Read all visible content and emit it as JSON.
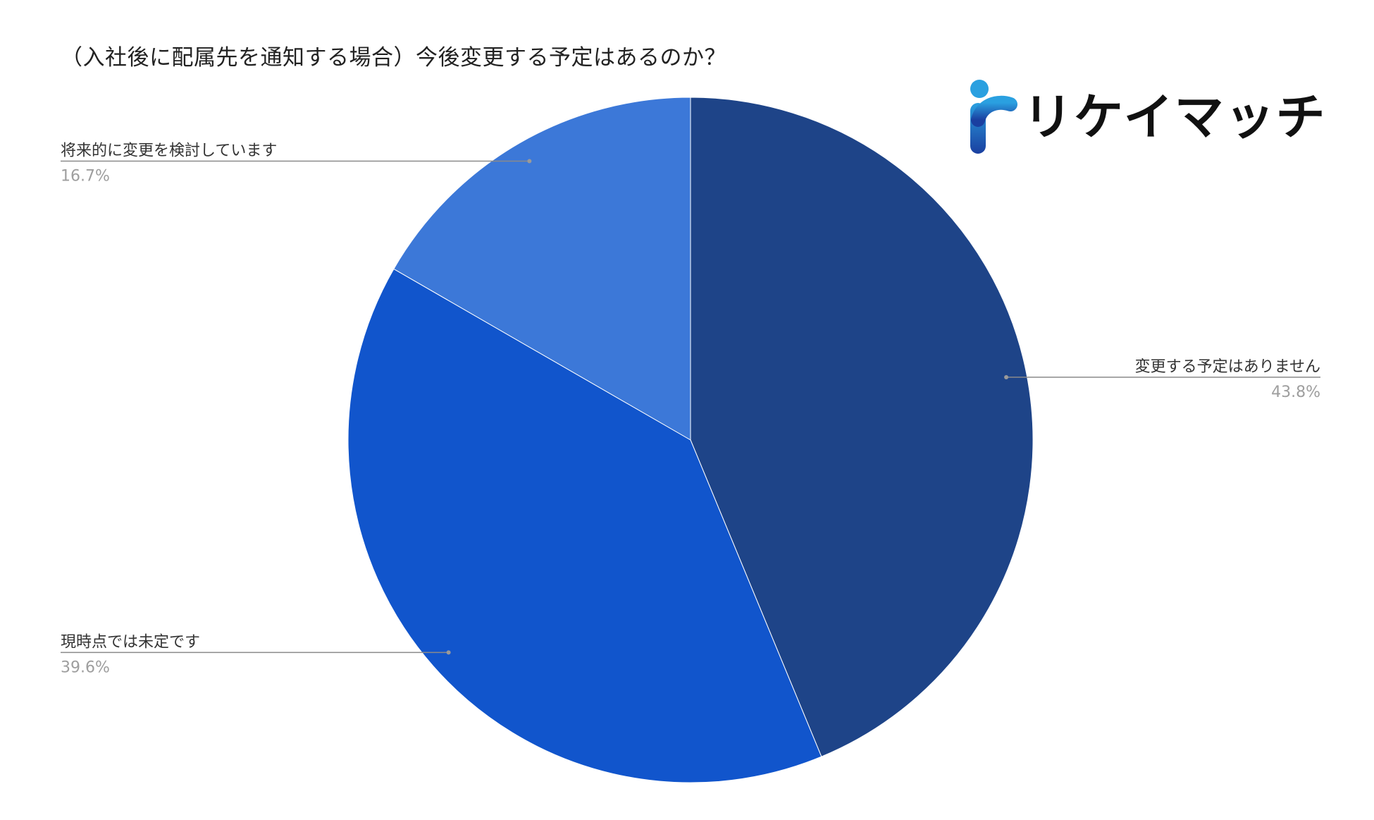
{
  "chart_data": {
    "type": "pie",
    "title": "（入社後に配属先を通知する場合）今後変更する予定はあるのか？",
    "slices": [
      {
        "label": "変更する予定はありません",
        "value": 43.8,
        "display": "43.8%",
        "color": "#1e4488"
      },
      {
        "label": "現時点では未定です",
        "value": 39.6,
        "display": "39.6%",
        "color": "#1155cc"
      },
      {
        "label": "将来的に変更を検討しています",
        "value": 16.7,
        "display": "16.7%",
        "color": "#3c78d8"
      }
    ],
    "start_angle": "12 o'clock",
    "direction": "clockwise",
    "legend": "none (leader-line labels)"
  },
  "logo": {
    "text": "リケイマッチ",
    "mark_icon": "r-letter-logo-icon",
    "mark_color_top": "#2aa0e0",
    "mark_color_bottom": "#1a3fa0"
  }
}
